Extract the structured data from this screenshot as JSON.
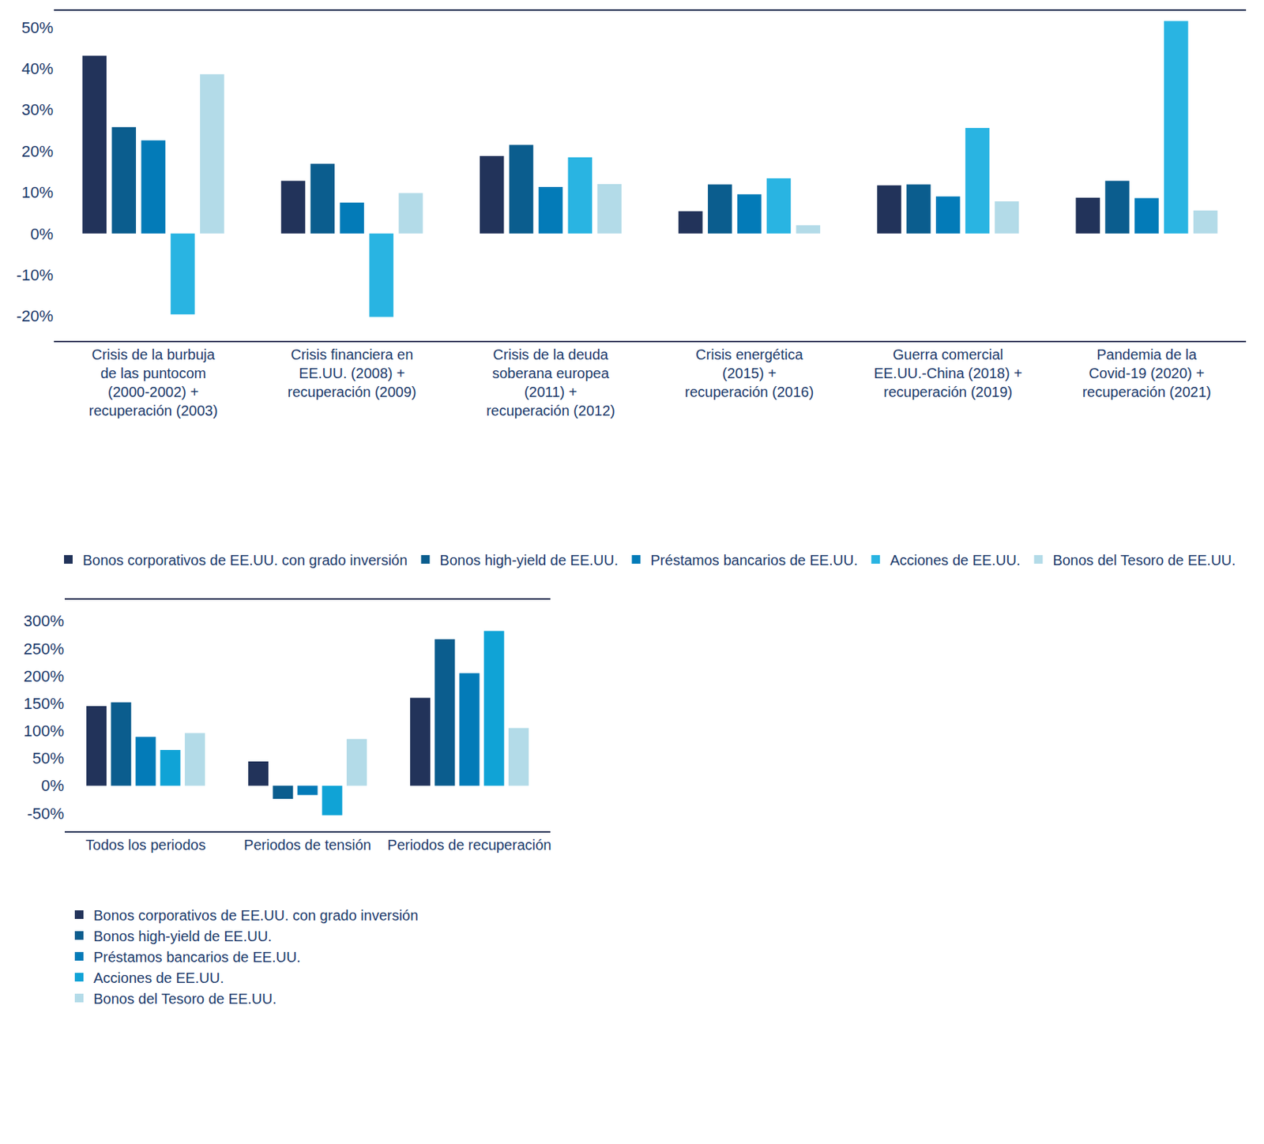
{
  "chart_data": [
    {
      "type": "bar",
      "categories": [
        "Crisis de la burbuja\nde las puntocom\n(2000-2002) +\nrecuperación (2003)",
        "Crisis financiera en\nEE.UU. (2008) +\nrecuperación (2009)",
        "Crisis de la deuda\nsoberana europea\n(2011) +\nrecuperación (2012)",
        "Crisis energética\n(2015) +\nrecuperación (2016)",
        "Guerra comercial\nEE.UU.-China (2018) +\nrecuperación (2019)",
        "Pandemia de la\nCovid-19 (2020) +\nrecuperación (2021)"
      ],
      "series": [
        {
          "name": "Bonos corporativos de EE.UU. con grado inversión",
          "color": "#22335a",
          "values": [
            43.1,
            12.8,
            18.8,
            5.4,
            11.7,
            8.7
          ]
        },
        {
          "name": "Bonos high-yield de EE.UU.",
          "color": "#0b5d8e",
          "values": [
            25.8,
            16.9,
            21.5,
            11.9,
            11.9,
            12.8
          ]
        },
        {
          "name": "Préstamos bancarios de EE.UU.",
          "color": "#037bb8",
          "values": [
            22.6,
            7.5,
            11.3,
            9.5,
            9.0,
            8.6
          ]
        },
        {
          "name": "Acciones de EE.UU.",
          "color": "#29b4e2",
          "values": [
            -19.6,
            -20.2,
            18.5,
            13.4,
            25.6,
            51.5
          ]
        },
        {
          "name": "Bonos del Tesoro de EE.UU.",
          "color": "#b3dbe8",
          "values": [
            38.6,
            9.8,
            12.0,
            2.0,
            7.8,
            5.6
          ]
        }
      ],
      "ylim": [
        -26,
        54
      ],
      "yticks": [
        {
          "value": -20,
          "label": "-20%"
        },
        {
          "value": -10,
          "label": "-10%"
        },
        {
          "value": 0,
          "label": "0%"
        },
        {
          "value": 10,
          "label": "10%"
        },
        {
          "value": 20,
          "label": "20%"
        },
        {
          "value": 30,
          "label": "30%"
        },
        {
          "value": 40,
          "label": "40%"
        },
        {
          "value": 50,
          "label": "50%"
        }
      ],
      "grid": false,
      "legend": "bottom"
    },
    {
      "type": "bar",
      "categories": [
        "Todos los periodos",
        "Periodos de tensión",
        "Periodos de recuperación"
      ],
      "series": [
        {
          "name": "Bonos corporativos de EE.UU. con grado inversión",
          "color": "#22335a",
          "values": [
            145,
            44,
            160
          ]
        },
        {
          "name": "Bonos high-yield de EE.UU.",
          "color": "#0b5d8e",
          "values": [
            152,
            -24,
            267
          ]
        },
        {
          "name": "Préstamos bancarios de EE.UU.",
          "color": "#037bb8",
          "values": [
            89,
            -17,
            205
          ]
        },
        {
          "name": "Acciones de EE.UU.",
          "color": "#10a3d6",
          "values": [
            65,
            -54,
            282
          ]
        },
        {
          "name": "Bonos del Tesoro de EE.UU.",
          "color": "#b3dbe8",
          "values": [
            96,
            85,
            105
          ]
        }
      ],
      "ylim": [
        -83,
        339
      ],
      "yticks": [
        {
          "value": -50,
          "label": "-50%"
        },
        {
          "value": 0,
          "label": "0%"
        },
        {
          "value": 50,
          "label": "50%"
        },
        {
          "value": 100,
          "label": "100%"
        },
        {
          "value": 150,
          "label": "150%"
        },
        {
          "value": 200,
          "label": "200%"
        },
        {
          "value": 250,
          "label": "250%"
        },
        {
          "value": 300,
          "label": "300%"
        }
      ],
      "grid": false,
      "legend": "bottom"
    }
  ]
}
